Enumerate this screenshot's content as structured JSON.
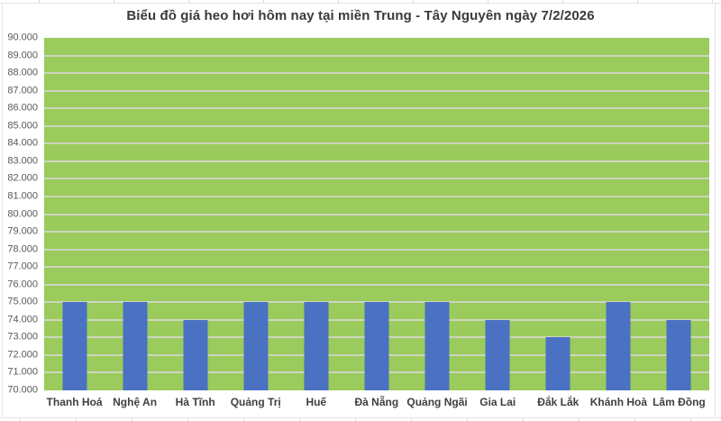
{
  "chart_data": {
    "type": "bar",
    "title": "Biểu đồ giá heo hơi hôm nay tại miền Trung - Tây Nguyên ngày 7/2/2026",
    "categories": [
      "Thanh Hoá",
      "Nghệ An",
      "Hà Tĩnh",
      "Quảng Trị",
      "Huế",
      "Đà Nẵng",
      "Quảng Ngãi",
      "Gia Lai",
      "Đắk Lắk",
      "Khánh Hoà",
      "Lâm Đồng"
    ],
    "values": [
      75000,
      75000,
      74000,
      75000,
      75000,
      75000,
      75000,
      74000,
      73000,
      75000,
      74000
    ],
    "xlabel": "",
    "ylabel": "",
    "ylim": [
      70000,
      90000
    ],
    "ytick_step": 1000,
    "ytick_labels": [
      "70.000",
      "71.000",
      "72.000",
      "73.000",
      "74.000",
      "75.000",
      "76.000",
      "77.000",
      "78.000",
      "79.000",
      "80.000",
      "81.000",
      "82.000",
      "83.000",
      "84.000",
      "85.000",
      "86.000",
      "87.000",
      "88.000",
      "89.000",
      "90.000"
    ],
    "grid": "horizontal",
    "legend": "none",
    "colors": {
      "bar": "#4A71C2",
      "plot_background": "#9ACB5C",
      "gridline": "#CCD6BD",
      "title_text": "#3A3A3A",
      "ytick_text": "#595959",
      "xtick_text": "#3F3F3F"
    }
  }
}
